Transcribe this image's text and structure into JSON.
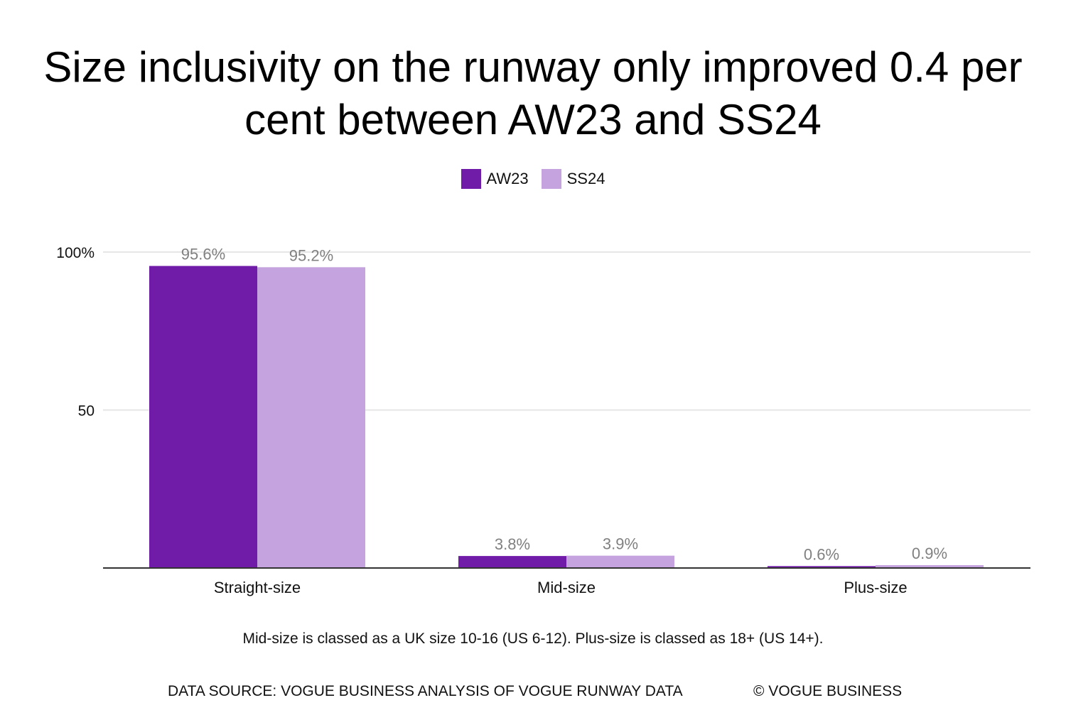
{
  "chart_data": {
    "type": "bar",
    "title": "Size inclusivity on the runway only improved 0.4 per cent between AW23 and SS24",
    "categories": [
      "Straight-size",
      "Mid-size",
      "Plus-size"
    ],
    "series": [
      {
        "name": "AW23",
        "color": "#711ca8",
        "values": [
          95.6,
          3.8,
          0.6
        ],
        "labels": [
          "95.6%",
          "3.8%",
          "0.6%"
        ]
      },
      {
        "name": "SS24",
        "color": "#c4a3de",
        "values": [
          95.2,
          3.9,
          0.9
        ],
        "labels": [
          "95.2%",
          "3.9%",
          "0.9%"
        ]
      }
    ],
    "ylim": [
      0,
      100
    ],
    "yticks": [
      {
        "value": 100,
        "label": "100%"
      },
      {
        "value": 50,
        "label": "50"
      }
    ],
    "grid": true,
    "legend": "top-center",
    "xlabel": "",
    "ylabel": ""
  },
  "note": "Mid-size is classed as a UK size 10-16 (US 6-12). Plus-size is classed as 18+ (US 14+).",
  "footer": {
    "source": "DATA SOURCE: VOGUE BUSINESS ANALYSIS OF VOGUE RUNWAY DATA",
    "copyright": "© VOGUE BUSINESS"
  },
  "colors": {
    "gridline": "#e6e6e6",
    "axis": "#333333",
    "data_label": "#808080"
  }
}
